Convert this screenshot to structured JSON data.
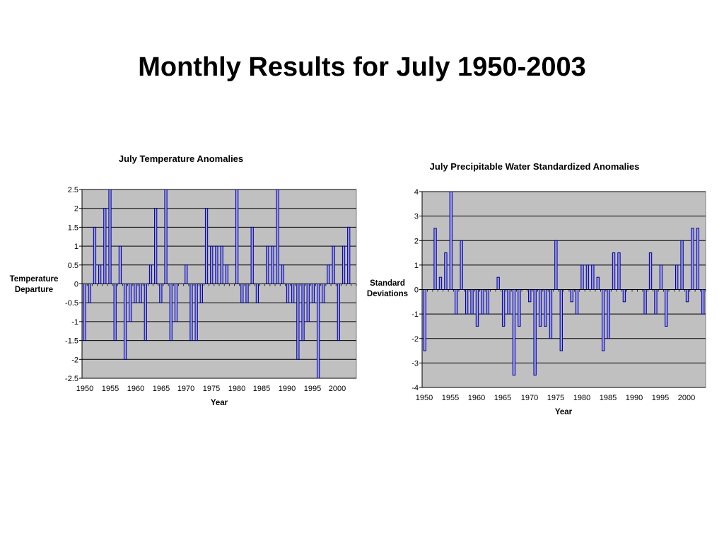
{
  "slide": {
    "title": "Monthly Results for July 1950-2003"
  },
  "colors": {
    "plot_bg": "#c0c0c0",
    "bar_fill": "#9999ff",
    "bar_stroke": "#000080",
    "grid": "#000000"
  },
  "chart_data": [
    {
      "type": "bar",
      "title": "July Temperature Anomalies",
      "xlabel": "Year",
      "ylabel": "Temperature Departure",
      "ylim": [
        -2.5,
        2.5
      ],
      "yticks": [
        -2.5,
        -2,
        -1.5,
        -1,
        -0.5,
        0,
        0.5,
        1,
        1.5,
        2,
        2.5
      ],
      "xticks": [
        1950,
        1955,
        1960,
        1965,
        1970,
        1975,
        1980,
        1985,
        1990,
        1995,
        2000
      ],
      "grid": true,
      "legend": "none",
      "x": [
        1950,
        1951,
        1952,
        1953,
        1954,
        1955,
        1956,
        1957,
        1958,
        1959,
        1960,
        1961,
        1962,
        1963,
        1964,
        1965,
        1966,
        1967,
        1968,
        1969,
        1970,
        1971,
        1972,
        1973,
        1974,
        1975,
        1976,
        1977,
        1978,
        1979,
        1980,
        1981,
        1982,
        1983,
        1984,
        1985,
        1986,
        1987,
        1988,
        1989,
        1990,
        1991,
        1992,
        1993,
        1994,
        1995,
        1996,
        1997,
        1998,
        1999,
        2000,
        2001,
        2002
      ],
      "values": [
        -1.5,
        -0.5,
        1.5,
        0.5,
        2,
        2.5,
        -1.5,
        1,
        -2,
        -1,
        -0.5,
        -0.5,
        -1.5,
        0.5,
        2,
        -0.5,
        2.5,
        -1.5,
        -1,
        0,
        0.5,
        -1.5,
        -1.5,
        -0.5,
        2,
        1,
        1,
        1,
        0.5,
        0,
        2.5,
        -0.5,
        -0.5,
        1.5,
        -0.5,
        0,
        1,
        1,
        2.5,
        0.5,
        -0.5,
        -0.5,
        -2,
        -1.5,
        -1,
        -0.5,
        -2.5,
        -0.5,
        0.5,
        1,
        -1.5,
        1,
        1.5
      ]
    },
    {
      "type": "bar",
      "title": "July Precipitable Water Standardized Anomalies",
      "xlabel": "Year",
      "ylabel": "Standard Deviations",
      "ylim": [
        -4,
        4
      ],
      "yticks": [
        -4,
        -3,
        -2,
        -1,
        0,
        1,
        2,
        3,
        4
      ],
      "xticks": [
        1950,
        1955,
        1960,
        1965,
        1970,
        1975,
        1980,
        1985,
        1990,
        1995,
        2000
      ],
      "grid": true,
      "legend": "none",
      "x": [
        1950,
        1951,
        1952,
        1953,
        1954,
        1955,
        1956,
        1957,
        1958,
        1959,
        1960,
        1961,
        1962,
        1963,
        1964,
        1965,
        1966,
        1967,
        1968,
        1969,
        1970,
        1971,
        1972,
        1973,
        1974,
        1975,
        1976,
        1977,
        1978,
        1979,
        1980,
        1981,
        1982,
        1983,
        1984,
        1985,
        1986,
        1987,
        1988,
        1989,
        1990,
        1991,
        1992,
        1993,
        1994,
        1995,
        1996,
        1997,
        1998,
        1999,
        2000,
        2001,
        2002,
        2003
      ],
      "values": [
        -2.5,
        0,
        2.5,
        0.5,
        1.5,
        4,
        -1,
        2,
        -1,
        -1,
        -1.5,
        -1,
        -1,
        0,
        0.5,
        -1.5,
        -1,
        -3.5,
        -1.5,
        0,
        -0.5,
        -3.5,
        -1.5,
        -1.5,
        -2,
        2,
        -2.5,
        0,
        -0.5,
        -1,
        1,
        1,
        1,
        0.5,
        -2.5,
        -2,
        1.5,
        1.5,
        -0.5,
        0,
        0,
        0,
        -1,
        1.5,
        -1,
        1,
        -1.5,
        0,
        1,
        2,
        -0.5,
        2.5,
        2.5,
        -1
      ]
    }
  ]
}
